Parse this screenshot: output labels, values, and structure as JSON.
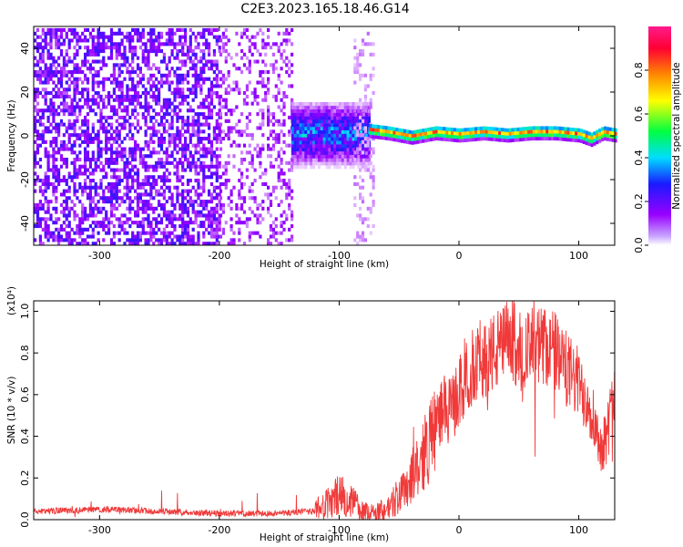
{
  "title": "C2E3.2023.165.18.46.G14",
  "colors": {
    "snr_line": "#f03a3a",
    "colormap": [
      "#ffffff",
      "#9900ff",
      "#1a1aff",
      "#00ddff",
      "#00ff40",
      "#ffff00",
      "#ff8800",
      "#ff0033",
      "#ff1a8c"
    ]
  },
  "chart_data": [
    {
      "type": "heatmap",
      "panel": "spectrogram",
      "xlabel": "Height of straight line (km)",
      "ylabel": "Frequency (Hz)",
      "xlim": [
        -355,
        130
      ],
      "ylim": [
        -50,
        50
      ],
      "x_ticks": [
        -300,
        -200,
        -100,
        0,
        100
      ],
      "x_tick_labels": [
        "-300",
        "-200",
        "-100",
        "0",
        "100"
      ],
      "y_ticks": [
        -40,
        -20,
        0,
        20,
        40
      ],
      "y_tick_labels": [
        "-40",
        "-20",
        "0",
        "20",
        "40"
      ],
      "colorbar": {
        "label": "Normalized spectral amplitude",
        "range": [
          0,
          1
        ],
        "ticks": [
          0.0,
          0.2,
          0.4,
          0.6,
          0.8
        ],
        "tick_labels": [
          "0.0",
          "0.2",
          "0.4",
          "0.6",
          "0.8"
        ]
      },
      "regions": [
        {
          "x_range": [
            -355,
            -200
          ],
          "freq_range": [
            -50,
            50
          ],
          "amplitude": 0.15
        },
        {
          "x_range": [
            -200,
            -140
          ],
          "freq_range": [
            -50,
            50
          ],
          "amplitude": 0.1
        },
        {
          "x_range": [
            -140,
            -75
          ],
          "freq_range": [
            -15,
            15
          ],
          "amplitude": 0.3
        },
        {
          "x_range": [
            -88,
            -72
          ],
          "freq_range": [
            -50,
            50
          ],
          "amplitude": 0.05
        },
        {
          "x_range": [
            -75,
            130
          ],
          "freq_range": [
            -2,
            4
          ],
          "amplitude": 0.9
        }
      ],
      "ridge_frequency": [
        [
          -75,
          2
        ],
        [
          -60,
          1
        ],
        [
          -50,
          0
        ],
        [
          -40,
          -1
        ],
        [
          -30,
          0
        ],
        [
          -20,
          1
        ],
        [
          0,
          0
        ],
        [
          20,
          1
        ],
        [
          40,
          0
        ],
        [
          60,
          1
        ],
        [
          80,
          1
        ],
        [
          100,
          0
        ],
        [
          110,
          -2
        ],
        [
          120,
          1
        ],
        [
          130,
          0
        ]
      ]
    },
    {
      "type": "line",
      "panel": "snr",
      "xlabel": "Height of straight line (km)",
      "ylabel": "SNR (10 * v/v)",
      "y_scale_label": "(x10⁴)",
      "xlim": [
        -355,
        130
      ],
      "ylim": [
        0,
        1.05
      ],
      "x_ticks": [
        -300,
        -200,
        -100,
        0,
        100
      ],
      "x_tick_labels": [
        "-300",
        "-200",
        "-100",
        "0",
        "100"
      ],
      "y_ticks": [
        0.0,
        0.2,
        0.4,
        0.6,
        0.8,
        1.0
      ],
      "y_tick_labels": [
        "0.0",
        "0.2",
        "0.4",
        "0.6",
        "0.8",
        "1.0"
      ],
      "series": [
        {
          "values_x": [
            -355,
            -300,
            -250,
            -200,
            -150,
            -120,
            -110,
            -100,
            -90,
            -80,
            -70,
            -60,
            -50,
            -40,
            -30,
            -20,
            -13,
            -10,
            0,
            10,
            20,
            30,
            40,
            45,
            50,
            60,
            70,
            75,
            80,
            90,
            100,
            110,
            118,
            123,
            130
          ],
          "values_y": [
            0.04,
            0.05,
            0.04,
            0.03,
            0.03,
            0.04,
            0.07,
            0.12,
            0.09,
            0.03,
            0.02,
            0.05,
            0.12,
            0.2,
            0.3,
            0.45,
            0.55,
            0.5,
            0.6,
            0.72,
            0.78,
            0.8,
            0.85,
            0.86,
            0.82,
            0.8,
            0.83,
            0.84,
            0.8,
            0.72,
            0.65,
            0.55,
            0.35,
            0.4,
            0.6
          ]
        }
      ]
    }
  ]
}
